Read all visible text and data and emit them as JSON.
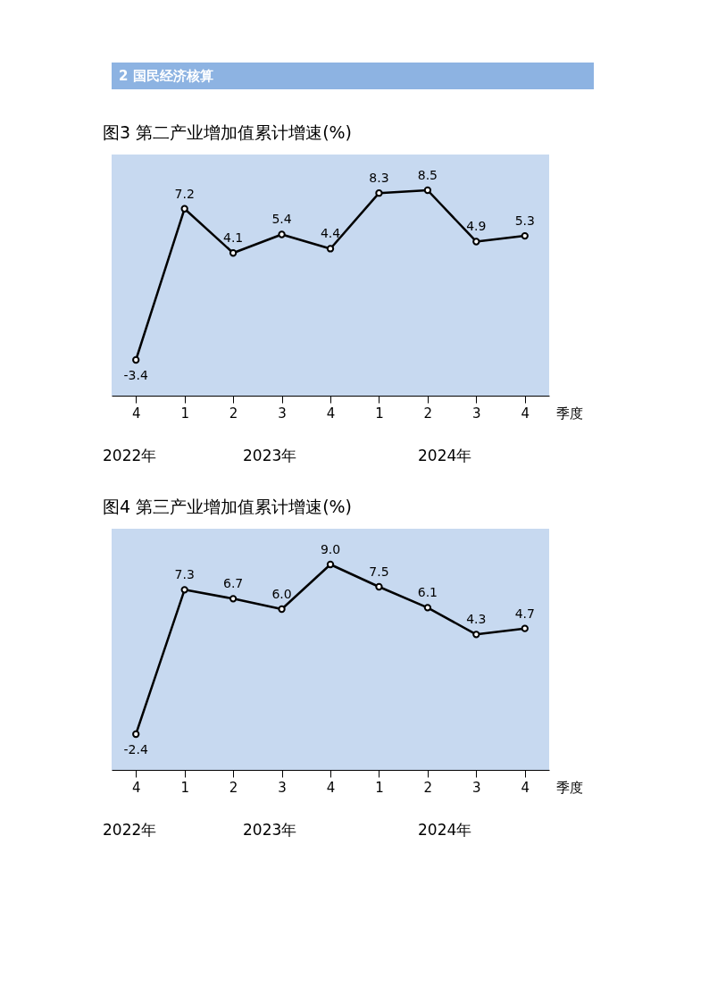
{
  "chart_data": [
    {
      "type": "line",
      "title": "图3  第二产业增加值累计增速(%)",
      "xlabel": "季度",
      "annotations": [
        "2  国民经济核算",
        "2022年",
        "2023年",
        "2024年"
      ],
      "categories": [
        "4",
        "1",
        "2",
        "3",
        "4",
        "1",
        "2",
        "3",
        "4"
      ],
      "series": [
        {
          "color": "#000000",
          "values": [
            -3.4,
            7.2,
            4.1,
            5.4,
            4.4,
            8.3,
            8.5,
            4.9,
            5.3
          ],
          "value_labels": [
            "-3.4",
            "7.2",
            "4.1",
            "5.4",
            "4.4",
            "8.3",
            "8.5",
            "4.9",
            "5.3"
          ]
        }
      ],
      "marker": "circle",
      "line_style": "solid",
      "tick_labels": "x"
    },
    {
      "type": "line",
      "title": "图4  第三产业增加值累计增速(%)",
      "xlabel": "季度",
      "annotations": [
        "2022年",
        "2023年",
        "2024年"
      ],
      "categories": [
        "4",
        "1",
        "2",
        "3",
        "4",
        "1",
        "2",
        "3",
        "4"
      ],
      "series": [
        {
          "color": "#000000",
          "values": [
            -2.4,
            7.3,
            6.7,
            6.0,
            9.0,
            7.5,
            6.1,
            4.3,
            4.7
          ],
          "value_labels": [
            "-2.4",
            "7.3",
            "6.7",
            "6.0",
            "9.0",
            "7.5",
            "6.1",
            "4.3",
            "4.7"
          ]
        }
      ],
      "marker": "circle",
      "line_style": "solid",
      "tick_labels": "x"
    }
  ]
}
